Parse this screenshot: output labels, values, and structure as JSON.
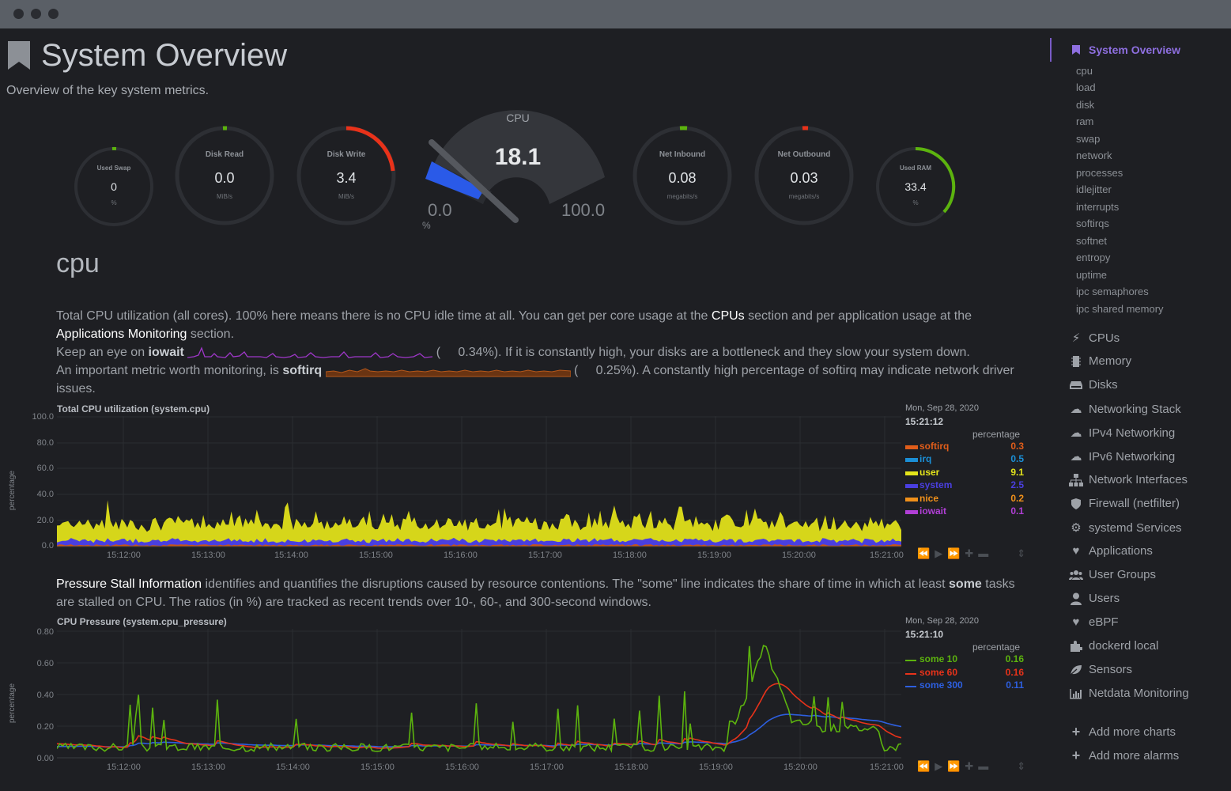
{
  "window": {
    "title": ""
  },
  "page": {
    "title": "System Overview",
    "subtitle": "Overview of the key system metrics."
  },
  "gauges": {
    "used_swap": {
      "label": "Used Swap",
      "value": "0",
      "unit": "%"
    },
    "disk_read": {
      "label": "Disk Read",
      "value": "0.0",
      "unit": "MiB/s"
    },
    "disk_write": {
      "label": "Disk Write",
      "value": "3.4",
      "unit": "MiB/s"
    },
    "cpu": {
      "label": "CPU",
      "value": "18.1",
      "min": "0.0",
      "max": "100.0",
      "unit": "%",
      "level": 18.1
    },
    "net_inbound": {
      "label": "Net Inbound",
      "value": "0.08",
      "unit": "megabits/s"
    },
    "net_outbound": {
      "label": "Net Outbound",
      "value": "0.03",
      "unit": "megabits/s"
    },
    "used_ram": {
      "label": "Used RAM",
      "value": "33.4",
      "unit": "%"
    }
  },
  "section": {
    "title": "cpu"
  },
  "cpu_text": {
    "p1a": "Total CPU utilization (all cores). 100% here means there is no CPU idle time at all. You can get per core usage at the ",
    "p1_link1": "CPUs",
    "p1b": " section and per application usage at the ",
    "p1_link2": "Applications Monitoring",
    "p1c": " section.",
    "p2a": "Keep an eye on ",
    "p2_bold": "iowait",
    "p2_paren": "(",
    "p2b": "0.34%). If it is constantly high, your disks are a bottleneck and they slow your system down.",
    "p3a": "An important metric worth monitoring, is ",
    "p3_bold": "softirq",
    "p3_paren": "(",
    "p3b": "0.25%). A constantly high percentage of softirq may indicate network driver",
    "p3c": "issues."
  },
  "psi_text": {
    "link": "Pressure Stall Information",
    "a": " identifies and quantifies the disruptions caused by resource contentions. The \"some\" line indicates the share of time in which at least ",
    "bold": "some",
    "b": " tasks",
    "c": "are stalled on CPU. The ratios (in %) are tracked as recent trends over 10-, 60-, and 300-second windows."
  },
  "chart_data": [
    {
      "type": "area",
      "title": "Total CPU utilization (system.cpu)",
      "ylabel": "percentage",
      "ylim": [
        0,
        100
      ],
      "yticks": [
        "100.0",
        "80.0",
        "60.0",
        "40.0",
        "20.0",
        "0.0"
      ],
      "xticks": [
        "15:12:00",
        "15:13:00",
        "15:14:00",
        "15:15:00",
        "15:16:00",
        "15:17:00",
        "15:18:00",
        "15:19:00",
        "15:20:00",
        "15:21:00"
      ],
      "legend": {
        "date": "Mon, Sep 28, 2020",
        "time": "15:21:12",
        "units": "percentage"
      },
      "series": [
        {
          "name": "softirq",
          "value": "0.3",
          "color": "#e05d1a"
        },
        {
          "name": "irq",
          "value": "0.5",
          "color": "#1b8fd6"
        },
        {
          "name": "user",
          "value": "9.1",
          "color": "#e4e41b"
        },
        {
          "name": "system",
          "value": "2.5",
          "color": "#4a3fe0"
        },
        {
          "name": "nice",
          "value": "0.2",
          "color": "#f0901a"
        },
        {
          "name": "iowait",
          "value": "0.1",
          "color": "#b13fd6"
        }
      ]
    },
    {
      "type": "line",
      "title": "CPU Pressure (system.cpu_pressure)",
      "ylabel": "percentage",
      "ylim": [
        0,
        0.8
      ],
      "yticks": [
        "0.80",
        "0.60",
        "0.40",
        "0.20",
        "0.00"
      ],
      "xticks": [
        "15:12:00",
        "15:13:00",
        "15:14:00",
        "15:15:00",
        "15:16:00",
        "15:17:00",
        "15:18:00",
        "15:19:00",
        "15:20:00",
        "15:21:00"
      ],
      "legend": {
        "date": "Mon, Sep 28, 2020",
        "time": "15:21:10",
        "units": "percentage"
      },
      "series": [
        {
          "name": "some 10",
          "value": "0.16",
          "color": "#5cb30e"
        },
        {
          "name": "some 60",
          "value": "0.16",
          "color": "#e8321a"
        },
        {
          "name": "some 300",
          "value": "0.11",
          "color": "#2d5fe0"
        }
      ]
    }
  ],
  "sidebar": {
    "main": "System Overview",
    "subs": [
      "cpu",
      "load",
      "disk",
      "ram",
      "swap",
      "network",
      "processes",
      "idlejitter",
      "interrupts",
      "softirqs",
      "softnet",
      "entropy",
      "uptime",
      "ipc semaphores",
      "ipc shared memory"
    ],
    "items": [
      {
        "label": "CPUs",
        "icon": "bolt-icon"
      },
      {
        "label": "Memory",
        "icon": "chip-icon"
      },
      {
        "label": "Disks",
        "icon": "hdd-icon"
      },
      {
        "label": "Networking Stack",
        "icon": "cloud-icon"
      },
      {
        "label": "IPv4 Networking",
        "icon": "cloud-icon"
      },
      {
        "label": "IPv6 Networking",
        "icon": "cloud-icon"
      },
      {
        "label": "Network Interfaces",
        "icon": "sitemap-icon"
      },
      {
        "label": "Firewall (netfilter)",
        "icon": "shield-icon"
      },
      {
        "label": "systemd Services",
        "icon": "gears-icon"
      },
      {
        "label": "Applications",
        "icon": "heartbeat-icon"
      },
      {
        "label": "User Groups",
        "icon": "users-icon"
      },
      {
        "label": "Users",
        "icon": "user-icon"
      },
      {
        "label": "eBPF",
        "icon": "heartbeat-icon"
      },
      {
        "label": "dockerd local",
        "icon": "puzzle-icon"
      },
      {
        "label": "Sensors",
        "icon": "leaf-icon"
      },
      {
        "label": "Netdata Monitoring",
        "icon": "bar-chart-icon"
      }
    ],
    "add_charts": "Add more charts",
    "add_alarms": "Add more alarms"
  }
}
